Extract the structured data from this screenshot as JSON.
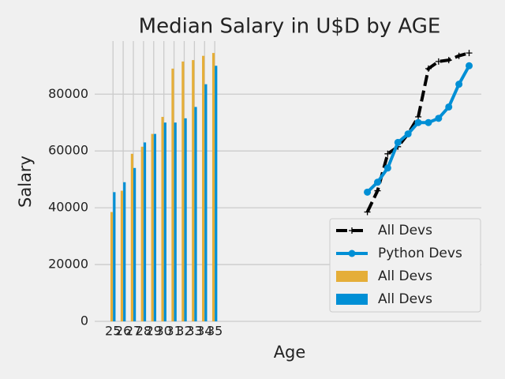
{
  "chart_data": {
    "type": "combo",
    "title": "Median Salary in U$D by AGE",
    "x_label": "Age",
    "y_label": "Salary",
    "xlim": [
      23.2,
      61.2
    ],
    "ylim": [
      0,
      98700
    ],
    "xticks": [
      25,
      26,
      27,
      28,
      29,
      30,
      31,
      32,
      33,
      34,
      35
    ],
    "yticks": [
      0,
      20000,
      40000,
      60000,
      80000
    ],
    "grid": true,
    "legend": "lower right",
    "series": [
      {
        "name": "All Devs",
        "type": "line",
        "style": "dashed",
        "marker": "+",
        "color": "#000000",
        "x": [
          50,
          51,
          52,
          53,
          54,
          55,
          56,
          57,
          58,
          59,
          60
        ],
        "values": [
          38500,
          46000,
          59000,
          61500,
          66000,
          72000,
          89000,
          91500,
          92000,
          93500,
          94500
        ]
      },
      {
        "name": "Python Devs",
        "type": "line",
        "style": "solid",
        "marker": "o",
        "color": "#008fd5",
        "x": [
          50,
          51,
          52,
          53,
          54,
          55,
          56,
          57,
          58,
          59,
          60
        ],
        "values": [
          45500,
          49000,
          54000,
          63000,
          66000,
          70000,
          70000,
          71500,
          75500,
          83500,
          90000
        ]
      },
      {
        "name": "All Devs",
        "type": "bar",
        "color": "#e5ae38",
        "x": [
          25,
          26,
          27,
          28,
          29,
          30,
          31,
          32,
          33,
          34,
          35
        ],
        "values": [
          38500,
          46000,
          59000,
          61500,
          66000,
          72000,
          89000,
          91500,
          92000,
          93500,
          94500
        ]
      },
      {
        "name": "All Devs",
        "type": "bar",
        "color": "#008fd5",
        "x": [
          25,
          26,
          27,
          28,
          29,
          30,
          31,
          32,
          33,
          34,
          35
        ],
        "values": [
          45500,
          49000,
          54000,
          63000,
          66000,
          70000,
          70000,
          71500,
          75500,
          83500,
          90000
        ]
      }
    ]
  }
}
